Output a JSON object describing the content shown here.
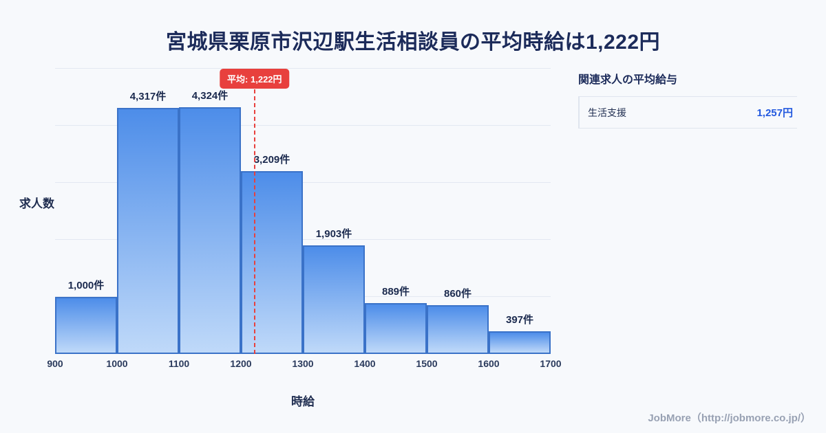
{
  "page": {
    "title": "宮城県栗原市沢辺駅生活相談員の平均時給は1,222円"
  },
  "chart_data": {
    "type": "bar",
    "title": "宮城県栗原市沢辺駅生活相談員の平均時給は1,222円",
    "xlabel": "時給",
    "ylabel": "求人数",
    "bins": [
      900,
      1000,
      1100,
      1200,
      1300,
      1400,
      1500,
      1600,
      1700
    ],
    "values": [
      1000,
      4317,
      4324,
      3209,
      1903,
      889,
      860,
      397
    ],
    "labels": [
      "1,000件",
      "4,317件",
      "4,324件",
      "3,209件",
      "1,903件",
      "889件",
      "860件",
      "397件"
    ],
    "ylim": [
      0,
      5000
    ],
    "grid": true,
    "grid_step": 1000,
    "legend": "none",
    "average": {
      "value": 1222,
      "label": "平均: 1,222円"
    }
  },
  "side_panel": {
    "heading": "関連求人の平均給与",
    "items": [
      {
        "label": "生活支援",
        "value": "1,257円"
      }
    ]
  },
  "footer": {
    "credit": "JobMore（http://jobmore.co.jp/）"
  },
  "colors": {
    "bar_gradient_top": "#4d8de9",
    "bar_gradient_bottom": "#bfd9f9",
    "bar_border": "#3a72c8",
    "average_red": "#e8403d",
    "value_blue": "#2359df",
    "title_navy": "#1c2b5a",
    "background": "#f7f9fc"
  }
}
